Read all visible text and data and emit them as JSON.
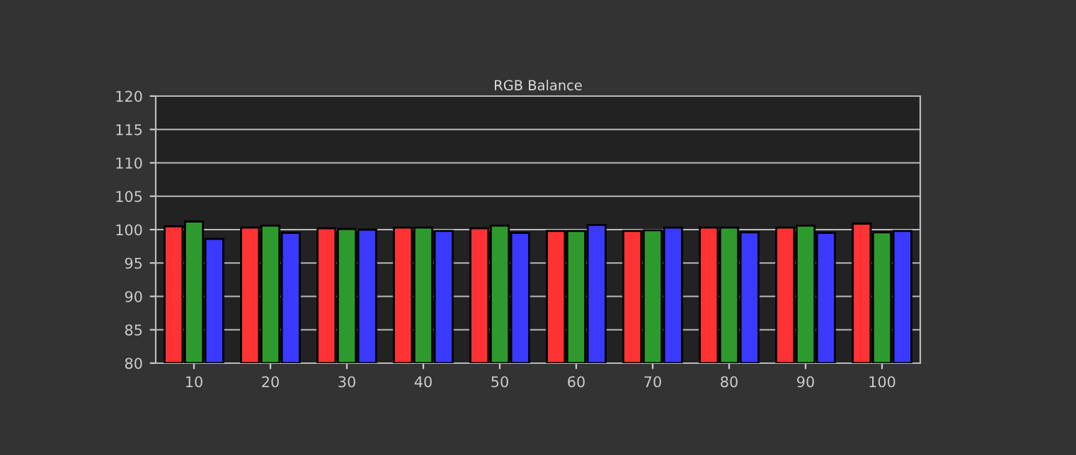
{
  "chart_data": {
    "type": "bar",
    "title": "RGB Balance",
    "categories": [
      "10",
      "20",
      "30",
      "40",
      "50",
      "60",
      "70",
      "80",
      "90",
      "100"
    ],
    "series": [
      {
        "color": "#ff3333",
        "values": [
          100.5,
          100.3,
          100.2,
          100.3,
          100.2,
          99.8,
          99.8,
          100.3,
          100.3,
          100.9
        ]
      },
      {
        "color": "#2e9a2e",
        "values": [
          101.2,
          100.6,
          100.1,
          100.3,
          100.6,
          99.8,
          99.9,
          100.3,
          100.6,
          99.6
        ]
      },
      {
        "color": "#3a3aff",
        "values": [
          98.6,
          99.5,
          100.0,
          99.8,
          99.5,
          100.7,
          100.3,
          99.6,
          99.5,
          99.8
        ]
      }
    ],
    "ylim": [
      80,
      120
    ],
    "yticks": [
      80,
      85,
      90,
      95,
      100,
      105,
      110,
      115,
      120
    ],
    "grid": "y"
  }
}
